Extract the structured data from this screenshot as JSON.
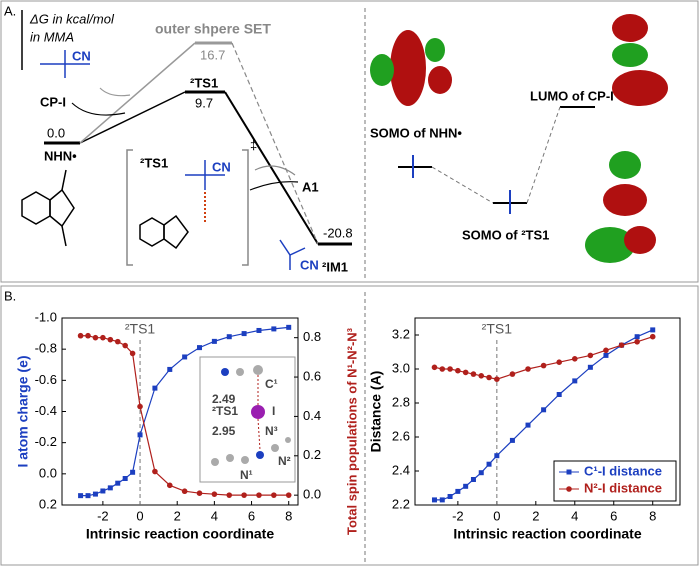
{
  "panel_a": {
    "label": "A.",
    "axis_label_1": "ΔG in kcal/mol",
    "axis_label_2": "in MMA",
    "outer_label": "outer shpere SET",
    "outer_energy": "16.7",
    "ts_label": "²TS1",
    "ts_energy": "9.7",
    "start_energy": "0.0",
    "start_label": "NHN•",
    "reagent_label": "CP-I",
    "cn_1": "CN",
    "product_a1": "A1",
    "im_energy": "-20.8",
    "im_label": "²IM1",
    "bracket_label": "²TS1",
    "dagger": "‡",
    "cn_2": "CN",
    "cn_3": "CN",
    "somo_nhn": "SOMO of NHN•",
    "lumo_cpi": "LUMO of CP-I",
    "somo_ts": "SOMO of ²TS1"
  },
  "panel_b": {
    "label": "B."
  },
  "chart_data": [
    {
      "type": "line",
      "xlabel": "Intrinsic reaction coordinate",
      "ylabel": "I atom charge (e)",
      "y2label": "Total spin populations of N¹-N²-N³",
      "x": [
        -3.2,
        -2.8,
        -2.4,
        -2,
        -1.6,
        -1.2,
        -0.8,
        -0.4,
        0,
        0.8,
        1.6,
        2.4,
        3.2,
        4,
        4.8,
        5.6,
        6.4,
        7.2,
        8
      ],
      "xlim": [
        -4.2,
        8.5
      ],
      "xticks": [
        -2,
        0,
        2,
        4,
        6,
        8
      ],
      "ylim": [
        -1.0,
        0.2
      ],
      "y_inverted": true,
      "yticks": [
        {
          "value": -1.0,
          "label": "-1.0"
        },
        -0.8,
        -0.6,
        -0.4,
        -0.2,
        {
          "value": 0,
          "label": "0.0"
        },
        0.2
      ],
      "y2lim": [
        -0.05,
        0.9
      ],
      "y2ticks": [
        {
          "value": 0,
          "label": "0.0"
        },
        0.2,
        0.4,
        0.6,
        0.8
      ],
      "series": [
        {
          "color": "#1c3fc0",
          "marker": "square",
          "values": [
            0.14,
            0.14,
            0.13,
            0.11,
            0.09,
            0.06,
            0.03,
            -0.01,
            -0.25,
            -0.55,
            -0.67,
            -0.75,
            -0.81,
            -0.85,
            -0.88,
            -0.9,
            -0.92,
            -0.93,
            -0.94
          ]
        },
        {
          "color": "#b0201c",
          "marker": "circle",
          "axis": "y2",
          "values": [
            0.81,
            0.81,
            0.8,
            0.8,
            0.79,
            0.78,
            0.76,
            0.72,
            0.45,
            0.12,
            0.05,
            0.02,
            0.01,
            0.005,
            0,
            0,
            0,
            0,
            0
          ]
        }
      ],
      "vline": 0,
      "vline_label": "²TS1",
      "inset": [
        "C¹",
        "2.49",
        "²TS1",
        "I",
        "2.95",
        "N³",
        "N¹",
        "N²"
      ]
    },
    {
      "type": "line",
      "xlabel": "Intrinsic reaction coordinate",
      "ylabel": "Distance (A)",
      "x": [
        -3.2,
        -2.8,
        -2.4,
        -2,
        -1.6,
        -1.2,
        -0.8,
        -0.4,
        0,
        0.8,
        1.6,
        2.4,
        3.2,
        4,
        4.8,
        5.6,
        6.4,
        7.2,
        8
      ],
      "xlim": [
        -4.2,
        9.4
      ],
      "xticks": [
        -2,
        0,
        2,
        4,
        6,
        8
      ],
      "ylim": [
        2.2,
        3.3
      ],
      "yticks": [
        2.2,
        2.4,
        2.6,
        2.8,
        {
          "value": 3,
          "label": "3.0"
        },
        3.2
      ],
      "series": [
        {
          "name": "C¹-I distance",
          "color": "#1c3fc0",
          "marker": "square",
          "values": [
            2.23,
            2.23,
            2.25,
            2.28,
            2.31,
            2.35,
            2.39,
            2.44,
            2.49,
            2.58,
            2.67,
            2.76,
            2.85,
            2.93,
            3.01,
            3.08,
            3.14,
            3.19,
            3.23
          ]
        },
        {
          "name": "N²-I distance",
          "color": "#b0201c",
          "marker": "circle",
          "values": [
            3.01,
            3.0,
            3.0,
            2.99,
            2.98,
            2.97,
            2.96,
            2.95,
            2.94,
            2.97,
            3.0,
            3.02,
            3.04,
            3.06,
            3.08,
            3.11,
            3.14,
            3.16,
            3.19
          ]
        }
      ],
      "vline": 0,
      "vline_label": "²TS1",
      "legend": "lower right"
    }
  ]
}
